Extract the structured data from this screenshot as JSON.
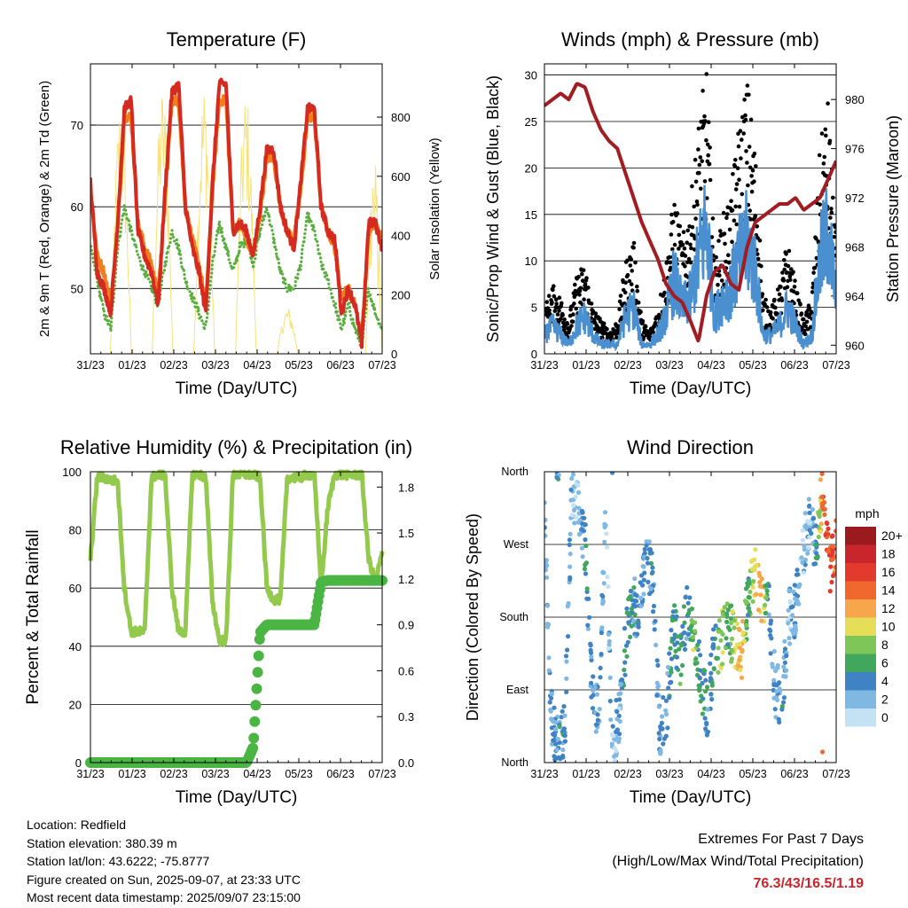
{
  "colors": {
    "temp_2m": "#d42a20",
    "temp_9m": "#f07e1d",
    "dewpoint": "#5aae3f",
    "solar": "#f6e27a",
    "sonic_wind": "#4a8fd0",
    "gust": "#000000",
    "pressure": "#a11d22",
    "rh": "#93c94c",
    "precip": "#4bb544",
    "extremes_text": "#c8252c"
  },
  "x_ticks": [
    "31/23",
    "01/23",
    "02/23",
    "03/23",
    "04/23",
    "05/23",
    "06/23",
    "07/23"
  ],
  "chart_data": [
    {
      "id": "temperature",
      "type": "line",
      "title": "Temperature (F)",
      "xlabel": "Time (Day/UTC)",
      "ylabel": "2m & 9m T (Red, Orange) & 2m Td (Green)",
      "ylabel_right": "Solar Insolation (Yellow)",
      "ylim": [
        42,
        77.5
      ],
      "yticks": [
        50,
        60,
        70
      ],
      "ylim_right": [
        0,
        980
      ],
      "yticks_right": [
        0,
        200,
        400,
        600,
        800
      ],
      "series": [
        {
          "key": "temp_2m",
          "values": [
            63,
            52,
            50,
            47,
            58,
            72,
            73,
            57,
            54,
            52,
            48,
            62,
            74,
            75,
            60,
            55,
            52,
            47,
            63,
            75,
            75,
            57,
            58,
            57,
            54,
            60,
            67,
            67,
            60,
            57,
            55,
            63,
            72,
            72,
            60,
            57,
            56,
            47,
            50,
            48,
            43,
            58,
            58,
            55
          ]
        },
        {
          "key": "temp_9m",
          "values": [
            62,
            54,
            52,
            48,
            57,
            71,
            71,
            58,
            55,
            53,
            49,
            61,
            73,
            73,
            60,
            56,
            53,
            48,
            62,
            73,
            73,
            57,
            58,
            56,
            54,
            59,
            66,
            66,
            60,
            57,
            56,
            62,
            71,
            71,
            60,
            57,
            55,
            49,
            50,
            48,
            44,
            57,
            58,
            56
          ]
        },
        {
          "key": "dewpoint",
          "values": [
            55,
            51,
            47,
            45,
            55,
            60,
            57,
            54,
            52,
            50,
            48,
            53,
            57,
            55,
            51,
            49,
            47,
            45,
            53,
            58,
            55,
            52,
            55,
            56,
            53,
            57,
            60,
            56,
            52,
            50,
            50,
            53,
            59,
            57,
            53,
            51,
            48,
            45,
            48,
            45,
            43,
            50,
            47,
            45
          ]
        },
        {
          "key": "solar",
          "values": [
            0,
            0,
            0,
            0,
            850,
            850,
            0,
            0,
            0,
            0,
            0,
            0,
            850,
            850,
            0,
            0,
            0,
            0,
            0,
            860,
            860,
            0,
            0,
            0,
            0,
            0,
            0,
            0,
            0,
            0,
            0,
            0,
            0,
            0,
            0,
            0,
            0,
            0,
            0,
            0,
            0,
            600,
            800,
            0
          ]
        }
      ]
    },
    {
      "id": "winds",
      "type": "scatter",
      "title": "Winds (mph) & Pressure (mb)",
      "xlabel": "Time (Day/UTC)",
      "ylabel": "Sonic/Prop Wind & Gust (Blue, Black)",
      "ylabel_right": "Station Pressure (Maroon)",
      "ylim": [
        0,
        31.2
      ],
      "yticks": [
        0,
        5,
        10,
        15,
        20,
        25,
        30
      ],
      "ylim_right": [
        959.3,
        982.9
      ],
      "yticks_right": [
        960,
        964,
        968,
        972,
        976,
        980
      ],
      "series": [
        {
          "key": "gust",
          "values": [
            4,
            6,
            5,
            3,
            7,
            8,
            4,
            3,
            2,
            3,
            8,
            10,
            3,
            2,
            4,
            8,
            14,
            10,
            13,
            20,
            25,
            8,
            12,
            14,
            20,
            24,
            18,
            5,
            4,
            6,
            10,
            6,
            3,
            5,
            18,
            22,
            10
          ]
        },
        {
          "key": "sonic_wind",
          "values": [
            2,
            3,
            2,
            1,
            3,
            4,
            2,
            1,
            1,
            1,
            4,
            5,
            1,
            1,
            2,
            4,
            8,
            5,
            6,
            10,
            14,
            4,
            6,
            7,
            10,
            12,
            9,
            2,
            2,
            3,
            5,
            3,
            1,
            2,
            10,
            13,
            6
          ]
        },
        {
          "key": "pressure",
          "values": [
            979.5,
            980,
            980.5,
            980,
            981.3,
            981,
            979,
            977.5,
            976.6,
            976,
            974,
            972,
            970,
            968.5,
            967,
            965,
            964,
            963.5,
            962,
            960.3,
            964,
            966,
            966.5,
            965,
            964.5,
            968,
            970,
            970.5,
            971,
            971.5,
            971.5,
            972,
            971,
            971.5,
            972,
            973.5,
            975
          ]
        }
      ]
    },
    {
      "id": "humidity",
      "type": "line",
      "title": "Relative Humidity (%) & Precipitation (in)",
      "xlabel": "Time (Day/UTC)",
      "ylabel": "Percent & Total Rainfall",
      "ylim": [
        0,
        100
      ],
      "yticks": [
        0,
        20,
        40,
        60,
        80,
        100
      ],
      "ylim_right": [
        0,
        1.9
      ],
      "yticks_right": [
        "0.0",
        "0.3",
        "0.6",
        "0.9",
        "1.2",
        "1.5",
        "1.8"
      ],
      "series": [
        {
          "key": "rh",
          "values": [
            70,
            98,
            98,
            97,
            97,
            60,
            45,
            45,
            45,
            98,
            99,
            99,
            60,
            45,
            45,
            99,
            99,
            98,
            55,
            42,
            42,
            99,
            99,
            99,
            99,
            98,
            60,
            56,
            56,
            98,
            98,
            98,
            99,
            99,
            60,
            88,
            99,
            99,
            99,
            99,
            99,
            70,
            62,
            72
          ]
        },
        {
          "key": "precip",
          "values": [
            0,
            0,
            0,
            0,
            0,
            0,
            0,
            0,
            0,
            0,
            0,
            0,
            0,
            0,
            0,
            0,
            0,
            0,
            0,
            0,
            0,
            0,
            0,
            0,
            0.1,
            0.85,
            0.9,
            0.9,
            0.9,
            0.9,
            0.9,
            0.9,
            0.9,
            0.9,
            1.18,
            1.19,
            1.19,
            1.19,
            1.19,
            1.19,
            1.19,
            1.19,
            1.19,
            1.19
          ]
        }
      ]
    },
    {
      "id": "direction",
      "type": "scatter",
      "title": "Wind Direction",
      "xlabel": "Time (Day/UTC)",
      "ylabel": "Direction (Colored By Speed)",
      "ylim": [
        0,
        360
      ],
      "yticks": [
        "North",
        "East",
        "South",
        "West",
        "North"
      ],
      "legend_title": "mph",
      "legend_labels": [
        "20+",
        "18",
        "16",
        "14",
        "12",
        "10",
        "8",
        "6",
        "4",
        "2",
        "0"
      ],
      "legend_colors": [
        "#9b1a1e",
        "#c8252c",
        "#e23a2c",
        "#f0682d",
        "#f7a64b",
        "#e6de59",
        "#7fc658",
        "#41a75d",
        "#3f83c4",
        "#7fb9e3",
        "#c4e2f4"
      ],
      "series": [
        {
          "key": "direction",
          "values": [
            300,
            60,
            20,
            40,
            330,
            310,
            270,
            80,
            60,
            300,
            20,
            60,
            150,
            200,
            180,
            260,
            220,
            40,
            60,
            170,
            130,
            190,
            170,
            110,
            60,
            140,
            150,
            170,
            150,
            130,
            200,
            240,
            200,
            210,
            90,
            80,
            180,
            190,
            260,
            300,
            270,
            340,
            240,
            270
          ]
        },
        {
          "key": "speed",
          "values": [
            2,
            3,
            4,
            4,
            2,
            2,
            5,
            3,
            3,
            2,
            2,
            2,
            5,
            4,
            4,
            3,
            4,
            3,
            3,
            5,
            6,
            3,
            8,
            5,
            4,
            5,
            9,
            6,
            9,
            12,
            5,
            11,
            12,
            4,
            3,
            4,
            2,
            3,
            2,
            2,
            4,
            14,
            16,
            13
          ]
        }
      ]
    }
  ],
  "footer": {
    "location": "Location: Redfield",
    "elevation": "Station elevation: 380.39 m",
    "latlon": "Station lat/lon: 43.6222; -75.8777",
    "created": "Figure created on Sun, 2025-09-07, at 23:33 UTC",
    "recent": "Most recent data timestamp: 2025/09/07 23:15:00"
  },
  "extremes": {
    "title": "Extremes For Past 7 Days",
    "subtitle": "(High/Low/Max Wind/Total Precipitation)",
    "values": "76.3/43/16.5/1.19"
  }
}
